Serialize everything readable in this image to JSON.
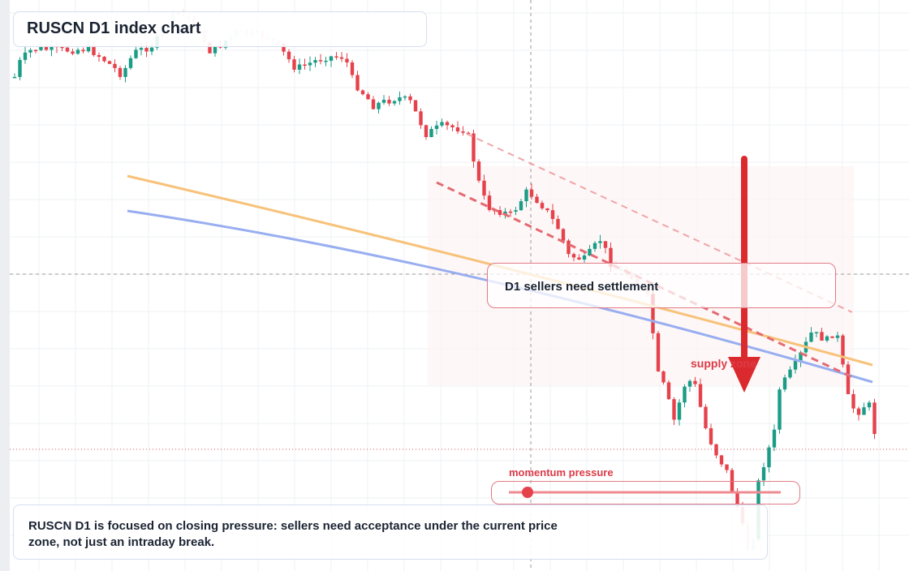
{
  "header": {
    "title": "RUSCN D1 index chart"
  },
  "annotations": {
    "callout": "D1 sellers need settlement",
    "zone": "supply zone",
    "momentum": "momentum pressure"
  },
  "note": {
    "text": "RUSCN D1 is focused on closing pressure: sellers need acceptance under the current price zone, not just an intraday break."
  }
}
